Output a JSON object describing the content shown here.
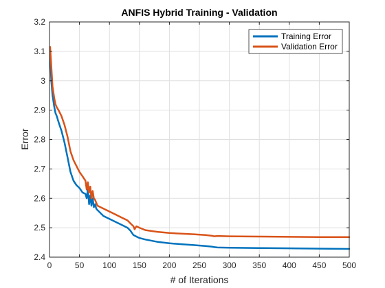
{
  "chart_data": {
    "type": "line",
    "title": "ANFIS Hybrid Training - Validation",
    "xlabel": "# of Iterations",
    "ylabel": "Error",
    "xlim": [
      0,
      500
    ],
    "ylim": [
      2.4,
      3.2
    ],
    "xticks": [
      0,
      50,
      100,
      150,
      200,
      250,
      300,
      350,
      400,
      450,
      500
    ],
    "yticks": [
      2.4,
      2.5,
      2.6,
      2.7,
      2.8,
      2.9,
      3,
      3.1,
      3.2
    ],
    "xtick_labels": [
      "0",
      "50",
      "100",
      "150",
      "200",
      "250",
      "300",
      "350",
      "400",
      "450",
      "500"
    ],
    "ytick_labels": [
      "2.4",
      "2.5",
      "2.6",
      "2.7",
      "2.8",
      "2.9",
      "3",
      "3.1",
      "3.2"
    ],
    "grid": true,
    "legend_position": "top-right",
    "series": [
      {
        "name": "Training Error",
        "color": "#0072BD",
        "x": [
          1,
          3,
          5,
          8,
          10,
          12,
          15,
          20,
          25,
          30,
          35,
          40,
          45,
          50,
          55,
          60,
          62,
          64,
          66,
          68,
          70,
          72,
          74,
          76,
          78,
          80,
          90,
          100,
          110,
          120,
          130,
          135,
          140,
          145,
          150,
          160,
          180,
          200,
          220,
          240,
          260,
          270,
          275,
          280,
          300,
          350,
          400,
          450,
          500
        ],
        "y": [
          3.1,
          3.0,
          2.95,
          2.91,
          2.89,
          2.88,
          2.86,
          2.83,
          2.79,
          2.74,
          2.69,
          2.66,
          2.645,
          2.635,
          2.62,
          2.615,
          2.6,
          2.63,
          2.58,
          2.61,
          2.575,
          2.6,
          2.57,
          2.58,
          2.565,
          2.56,
          2.54,
          2.53,
          2.52,
          2.51,
          2.5,
          2.49,
          2.475,
          2.47,
          2.465,
          2.46,
          2.452,
          2.447,
          2.444,
          2.441,
          2.438,
          2.436,
          2.434,
          2.433,
          2.432,
          2.431,
          2.43,
          2.429,
          2.428
        ]
      },
      {
        "name": "Validation Error",
        "color": "#D95319",
        "x": [
          1,
          3,
          5,
          8,
          10,
          12,
          15,
          20,
          25,
          30,
          35,
          40,
          45,
          50,
          55,
          60,
          62,
          64,
          66,
          68,
          70,
          72,
          74,
          76,
          78,
          80,
          90,
          100,
          110,
          120,
          130,
          135,
          140,
          142,
          145,
          150,
          160,
          180,
          200,
          220,
          240,
          260,
          270,
          275,
          280,
          300,
          350,
          400,
          450,
          500
        ],
        "y": [
          3.115,
          3.05,
          2.98,
          2.94,
          2.92,
          2.91,
          2.9,
          2.88,
          2.85,
          2.81,
          2.76,
          2.73,
          2.71,
          2.69,
          2.675,
          2.66,
          2.63,
          2.655,
          2.62,
          2.64,
          2.6,
          2.625,
          2.6,
          2.595,
          2.585,
          2.575,
          2.565,
          2.555,
          2.545,
          2.535,
          2.525,
          2.515,
          2.505,
          2.495,
          2.505,
          2.5,
          2.492,
          2.486,
          2.482,
          2.48,
          2.478,
          2.475,
          2.473,
          2.471,
          2.472,
          2.471,
          2.47,
          2.469,
          2.468,
          2.468
        ]
      }
    ]
  }
}
